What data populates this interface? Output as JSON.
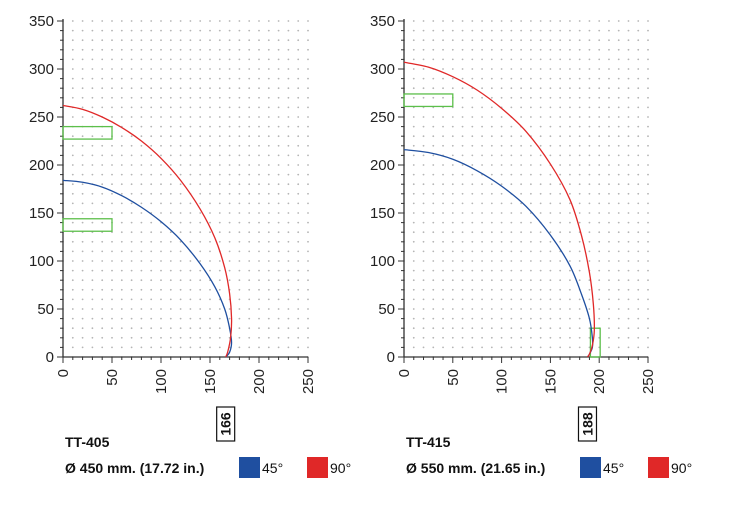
{
  "colors": {
    "deg45": "#1f4fa0",
    "deg90": "#e02828",
    "highlight": "#5cbf4a",
    "grid_dot": "#b5b5b5",
    "axis": "#333333"
  },
  "chart_data": [
    {
      "type": "line",
      "model": "TT-405",
      "size_label": "Ø 450 mm. (17.72 in.)",
      "xlim": [
        0,
        250
      ],
      "ylim": [
        0,
        350
      ],
      "x_ticks": [
        "0",
        "50",
        "100",
        "150",
        "200",
        "250"
      ],
      "y_ticks": [
        "0",
        "50",
        "100",
        "150",
        "200",
        "250",
        "300",
        "350"
      ],
      "grid": true,
      "legend": [
        {
          "label": "45°",
          "color": "#1f4fa0"
        },
        {
          "label": "90°",
          "color": "#e02828"
        }
      ],
      "marker_value": "166",
      "series": [
        {
          "name": "45°",
          "color": "#1f4fa0",
          "x": [
            0,
            20,
            40,
            60,
            80,
            100,
            120,
            140,
            155,
            165,
            170,
            172,
            170,
            166
          ],
          "y": [
            184,
            182,
            177,
            168,
            156,
            141,
            122,
            97,
            73,
            50,
            30,
            15,
            5,
            0
          ]
        },
        {
          "name": "90°",
          "color": "#e02828",
          "x": [
            0,
            20,
            40,
            60,
            80,
            100,
            120,
            140,
            155,
            165,
            170,
            172,
            171,
            168,
            166
          ],
          "y": [
            262,
            258,
            250,
            239,
            225,
            207,
            184,
            154,
            124,
            93,
            66,
            40,
            20,
            5,
            0
          ]
        }
      ],
      "highlights": [
        {
          "x0": 0,
          "x1": 50,
          "y0": 227,
          "y1": 240
        },
        {
          "x0": 0,
          "x1": 50,
          "y0": 131,
          "y1": 144
        }
      ]
    },
    {
      "type": "line",
      "model": "TT-415",
      "size_label": "Ø 550 mm. (21.65 in.)",
      "xlim": [
        0,
        250
      ],
      "ylim": [
        0,
        350
      ],
      "x_ticks": [
        "0",
        "50",
        "100",
        "150",
        "200",
        "250"
      ],
      "y_ticks": [
        "0",
        "50",
        "100",
        "150",
        "200",
        "250",
        "300",
        "350"
      ],
      "grid": true,
      "legend": [
        {
          "label": "45°",
          "color": "#1f4fa0"
        },
        {
          "label": "90°",
          "color": "#e02828"
        }
      ],
      "marker_value": "188",
      "series": [
        {
          "name": "45°",
          "color": "#1f4fa0",
          "x": [
            0,
            25,
            50,
            75,
            100,
            125,
            150,
            170,
            182,
            190,
            193,
            193,
            190,
            188
          ],
          "y": [
            216,
            213,
            206,
            194,
            178,
            157,
            127,
            95,
            65,
            40,
            20,
            10,
            3,
            0
          ]
        },
        {
          "name": "90°",
          "color": "#e02828",
          "x": [
            0,
            25,
            50,
            75,
            100,
            125,
            150,
            170,
            182,
            190,
            194,
            195,
            193,
            190,
            188
          ],
          "y": [
            307,
            302,
            292,
            278,
            259,
            235,
            201,
            164,
            126,
            88,
            55,
            28,
            12,
            3,
            0
          ]
        }
      ],
      "highlights": [
        {
          "x0": 0,
          "x1": 50,
          "y0": 261,
          "y1": 274
        },
        {
          "x0": 191,
          "x1": 201,
          "y0": 0,
          "y1": 30
        }
      ]
    }
  ]
}
